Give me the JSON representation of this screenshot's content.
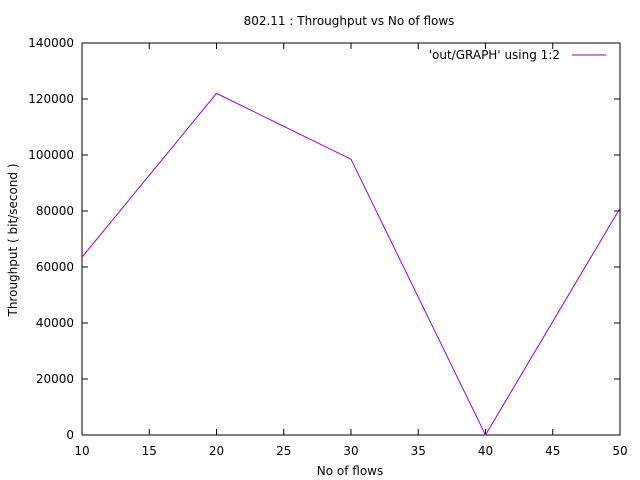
{
  "chart_data": {
    "type": "line",
    "title": "802.11 : Throughput vs No of flows",
    "xlabel": "No of flows",
    "ylabel": "Throughput ( bit/second )",
    "xlim": [
      10,
      50
    ],
    "ylim": [
      0,
      140000
    ],
    "xticks": [
      10,
      15,
      20,
      25,
      30,
      35,
      40,
      45,
      50
    ],
    "yticks": [
      0,
      20000,
      40000,
      60000,
      80000,
      100000,
      120000,
      140000
    ],
    "grid": false,
    "legend_position": "top-right",
    "series": [
      {
        "name": "'out/GRAPH' using 1:2",
        "color": "#9400d3",
        "x": [
          10,
          20,
          30,
          40,
          50
        ],
        "y": [
          63500,
          122000,
          98500,
          0,
          81000
        ]
      }
    ]
  }
}
